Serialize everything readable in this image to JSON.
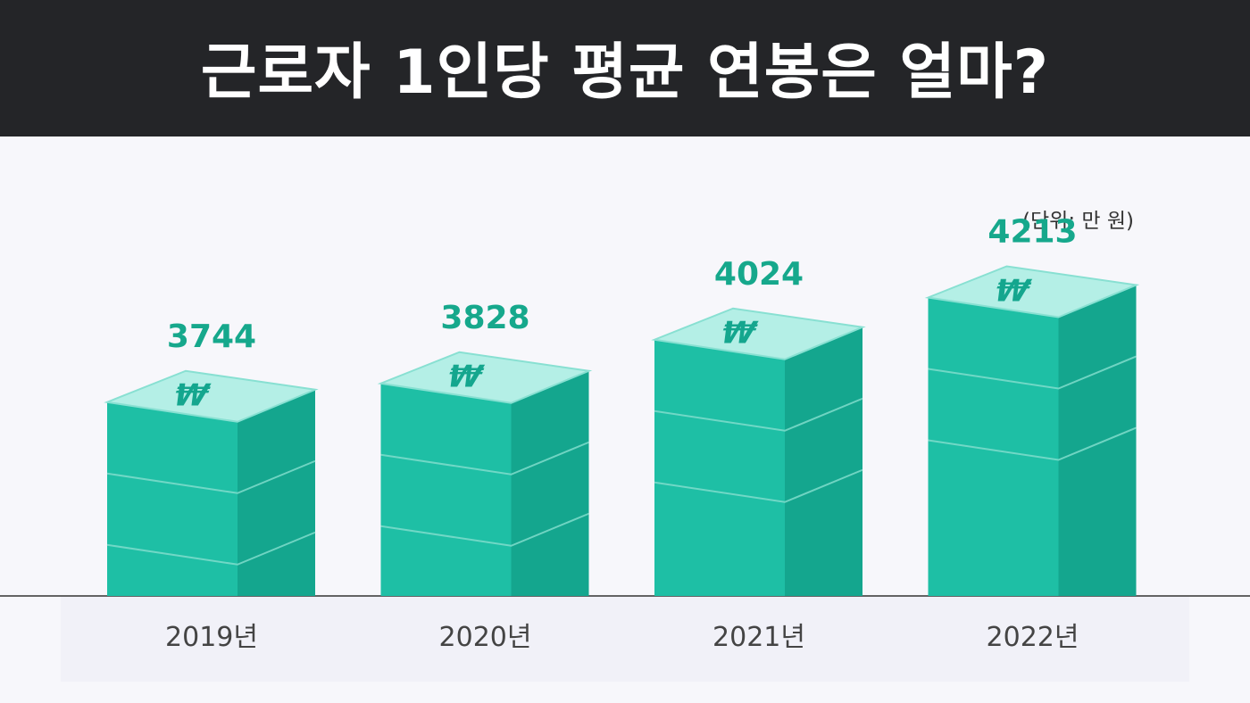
{
  "title": "근로자 1인당 평균 연봉은 얼마?",
  "unit_label": "(단위: 만 원)",
  "currency_symbol": "₩",
  "colors": {
    "header_bg": "#242528",
    "page_bg": "#f7f7fb",
    "bar_front": "#1ebfa5",
    "bar_side": "#14a68e",
    "bar_top": "#b4efe6",
    "bar_top_edge": "#88e0d2",
    "value_text": "#16a88c",
    "tick_text": "#444444",
    "baseline": "#333333"
  },
  "chart_data": {
    "type": "bar",
    "title": "근로자 1인당 평균 연봉은 얼마?",
    "ylabel": "(단위: 만 원)",
    "xlabel": "",
    "categories": [
      "2019년",
      "2020년",
      "2021년",
      "2022년"
    ],
    "values": [
      3744,
      3828,
      4024,
      4213
    ],
    "data_labels": [
      "3744",
      "3828",
      "4024",
      "4213"
    ],
    "grid": false
  }
}
